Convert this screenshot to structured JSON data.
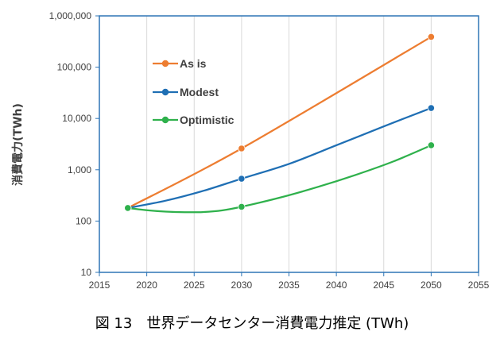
{
  "chart_data": {
    "type": "line",
    "title": "",
    "xlabel": "",
    "ylabel": "消費電力(TWh)",
    "y_scale": "log",
    "xlim": [
      2015,
      2055
    ],
    "ylim": [
      10,
      1000000
    ],
    "x_ticks": [
      2015,
      2020,
      2025,
      2030,
      2035,
      2040,
      2045,
      2050,
      2055
    ],
    "y_ticks": [
      10,
      100,
      1000,
      10000,
      100000,
      1000000
    ],
    "y_tick_labels": [
      "10",
      "100",
      "1,000",
      "10,000",
      "100,000",
      "1,000,000"
    ],
    "grid": "vertical",
    "legend": "upper-left",
    "series": [
      {
        "name": "As is",
        "color": "#ed7d31",
        "markers": [
          [
            2018,
            180
          ],
          [
            2030,
            2600
          ],
          [
            2050,
            390000
          ]
        ],
        "curve": [
          [
            2018,
            180
          ],
          [
            2030,
            2600
          ],
          [
            2050,
            390000
          ]
        ]
      },
      {
        "name": "Modest",
        "color": "#1f6fb4",
        "markers": [
          [
            2018,
            180
          ],
          [
            2030,
            670
          ],
          [
            2050,
            16000
          ]
        ],
        "curve": [
          [
            2018,
            180
          ],
          [
            2022,
            250
          ],
          [
            2026,
            390
          ],
          [
            2030,
            670
          ],
          [
            2035,
            1300
          ],
          [
            2040,
            3000
          ],
          [
            2045,
            7000
          ],
          [
            2050,
            16000
          ]
        ]
      },
      {
        "name": "Optimistic",
        "color": "#2fb14c",
        "markers": [
          [
            2018,
            180
          ],
          [
            2030,
            190
          ],
          [
            2050,
            3000
          ]
        ],
        "curve": [
          [
            2018,
            180
          ],
          [
            2020,
            163
          ],
          [
            2022,
            153
          ],
          [
            2024,
            149
          ],
          [
            2026,
            150
          ],
          [
            2028,
            162
          ],
          [
            2030,
            190
          ],
          [
            2034,
            285
          ],
          [
            2038,
            460
          ],
          [
            2042,
            790
          ],
          [
            2046,
            1450
          ],
          [
            2050,
            3000
          ]
        ]
      }
    ]
  },
  "caption": "図 13　世界データセンター消費電力推定 (TWh)"
}
